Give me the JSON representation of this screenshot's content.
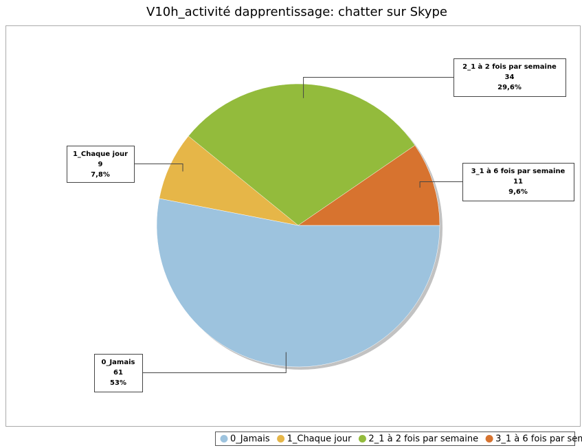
{
  "chart_data": {
    "type": "pie",
    "title": "V10h_activité dapprentissage: chatter sur Skype",
    "categories": [
      "0_Jamais",
      "1_Chaque jour",
      "2_1 à 2 fois par semaine",
      "3_1 à 6 fois par semaine"
    ],
    "values": [
      61,
      9,
      34,
      11
    ],
    "percentages": [
      53,
      7.8,
      29.6,
      9.6
    ],
    "percentage_labels": [
      "53%",
      "7,8%",
      "29,6%",
      "9,6%"
    ],
    "colors": [
      "#9dc3de",
      "#e6b648",
      "#93bb3c",
      "#d7732f"
    ],
    "legend": "bottom"
  }
}
